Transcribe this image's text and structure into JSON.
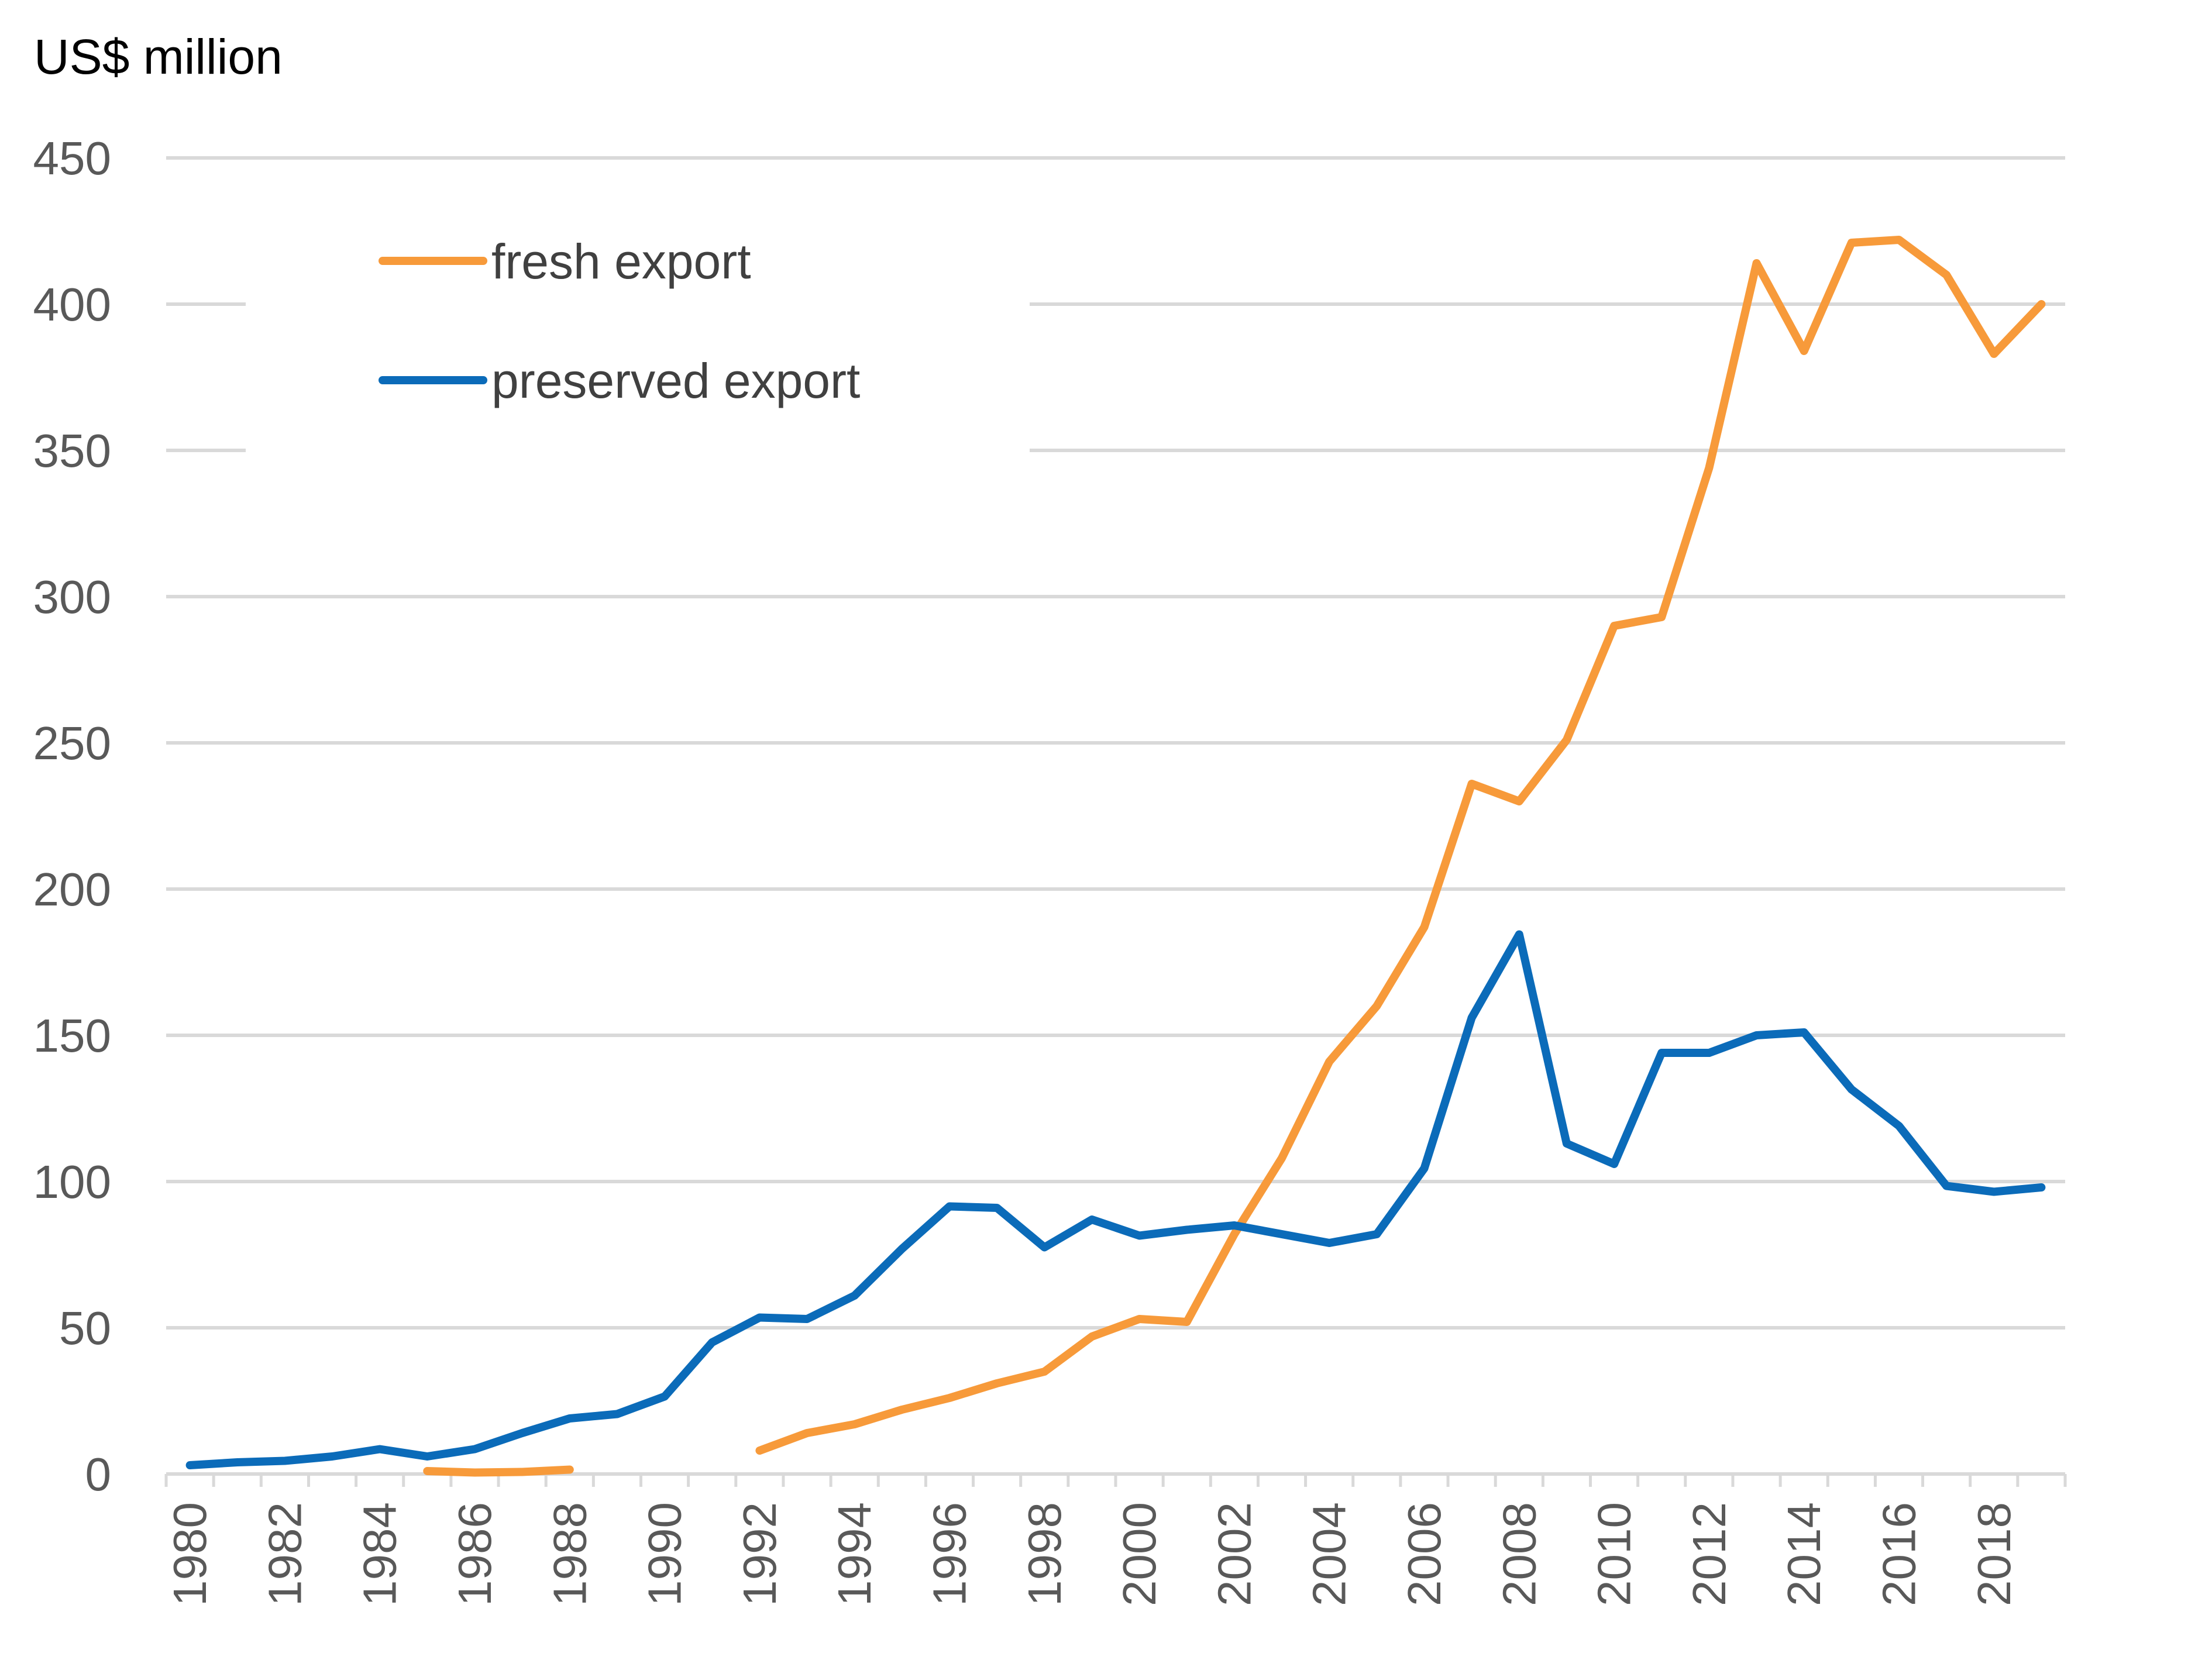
{
  "chart_data": {
    "type": "line",
    "ylabel": "US$ million",
    "xlabel": "",
    "ylim": [
      0,
      450
    ],
    "yticks": [
      0,
      50,
      100,
      150,
      200,
      250,
      300,
      350,
      400,
      450
    ],
    "x": [
      1980,
      1981,
      1982,
      1983,
      1984,
      1985,
      1986,
      1987,
      1988,
      1989,
      1990,
      1991,
      1992,
      1993,
      1994,
      1995,
      1996,
      1997,
      1998,
      1999,
      2000,
      2001,
      2002,
      2003,
      2004,
      2005,
      2006,
      2007,
      2008,
      2009,
      2010,
      2011,
      2012,
      2013,
      2014,
      2015,
      2016,
      2017,
      2018,
      2019
    ],
    "xtick_labels": [
      "1980",
      "1982",
      "1984",
      "1986",
      "1988",
      "1990",
      "1992",
      "1994",
      "1996",
      "1998",
      "2000",
      "2002",
      "2004",
      "2006",
      "2008",
      "2010",
      "2012",
      "2014",
      "2016",
      "2018"
    ],
    "grid": true,
    "legend_position": "top-left",
    "series": [
      {
        "name": "fresh export",
        "color": "#f79a3a",
        "values": [
          null,
          null,
          null,
          null,
          null,
          1,
          0.5,
          0.7,
          1.5,
          null,
          null,
          null,
          8,
          14,
          17,
          22,
          26,
          31,
          35,
          47,
          53,
          52,
          82,
          108,
          141,
          160,
          187,
          236,
          230,
          251,
          290,
          293,
          344,
          414,
          384,
          421,
          422,
          410,
          383,
          400
        ]
      },
      {
        "name": "preserved export",
        "color": "#0b6bb9",
        "values": [
          3,
          4,
          4.5,
          6,
          8.5,
          6,
          8.5,
          14,
          19,
          20.5,
          26.5,
          45,
          53.5,
          53,
          61,
          77,
          91.5,
          91,
          77.5,
          87,
          81.5,
          83.5,
          85,
          82,
          79,
          82,
          104.5,
          156,
          184.5,
          113,
          106,
          144,
          144,
          150,
          151,
          131.5,
          119,
          98.5,
          96.5,
          98
        ]
      }
    ]
  }
}
